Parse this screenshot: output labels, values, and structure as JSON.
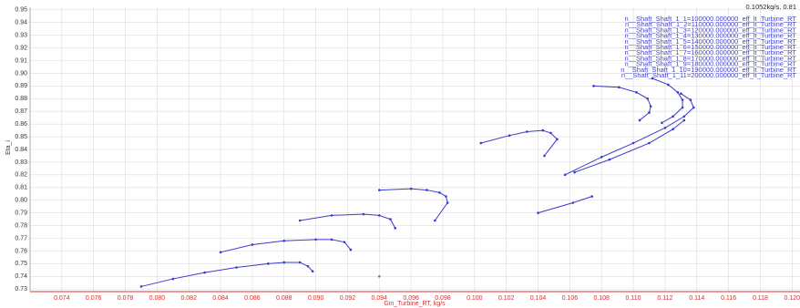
{
  "chart_data": {
    "type": "line",
    "xlabel": "Gin_Turbine_RT, kg/s",
    "ylabel": "Eta_i",
    "annotation": "0.1052kg/s, 0.81",
    "xlim": [
      0.072,
      0.1205
    ],
    "ylim": [
      0.728,
      0.952
    ],
    "grid": true,
    "legend": "upper right",
    "xticks": [
      0.074,
      0.076,
      0.078,
      {
        "value": 0.08,
        "label": "0.080"
      },
      0.082,
      0.084,
      0.086,
      0.088,
      {
        "value": 0.09,
        "label": "0.090"
      },
      0.092,
      0.094,
      0.096,
      0.098,
      {
        "value": 0.1,
        "label": "0.100"
      },
      0.102,
      0.104,
      0.106,
      0.108,
      {
        "value": 0.11,
        "label": "0.110"
      },
      0.112,
      0.114,
      0.116,
      0.118,
      {
        "value": 0.12,
        "label": "0.120"
      }
    ],
    "yticks": [
      0.73,
      0.74,
      0.75,
      0.76,
      0.77,
      0.78,
      0.79,
      {
        "value": 0.8,
        "label": "0.80"
      },
      0.81,
      0.82,
      0.83,
      0.84,
      0.85,
      0.86,
      0.87,
      0.88,
      0.89,
      {
        "value": 0.9,
        "label": "0.90"
      },
      0.91,
      0.92,
      0.93,
      0.94,
      0.95
    ],
    "series": [
      {
        "name": "n__Shaft_Shaft_1_1=100000.000000_eff_lt_Turbine_RT",
        "color": "#3a3acc",
        "x": [
          0.079,
          0.081,
          0.083,
          0.085,
          0.087,
          0.088,
          0.089,
          0.0895,
          0.0898
        ],
        "values": [
          0.732,
          0.738,
          0.743,
          0.747,
          0.75,
          0.751,
          0.751,
          0.748,
          0.744
        ]
      },
      {
        "name": "n__Shaft_Shaft_1_2=110000.000000_eff_lt_Turbine_RT",
        "color": "#3a3acc",
        "x": [
          0.084,
          0.086,
          0.088,
          0.09,
          0.091,
          0.0918,
          0.0922
        ],
        "values": [
          0.759,
          0.765,
          0.768,
          0.769,
          0.769,
          0.767,
          0.761
        ]
      },
      {
        "name": "n__Shaft_Shaft_1_3=120000.000000_eff_lt_Turbine_RT",
        "color": "#3a3acc",
        "x": [
          0.089,
          0.091,
          0.093,
          0.094,
          0.0947,
          0.095
        ],
        "values": [
          0.784,
          0.788,
          0.789,
          0.788,
          0.785,
          0.778
        ]
      },
      {
        "name": "n__Shaft_Shaft_1_4=130000.000000_eff_lt_Turbine_RT",
        "color": "#3a3acc",
        "x": [
          0.094,
          0.096,
          0.097,
          0.0978,
          0.0982,
          0.0983,
          0.0975
        ],
        "values": [
          0.808,
          0.809,
          0.808,
          0.806,
          0.803,
          0.798,
          0.784
        ]
      },
      {
        "name": "n__Shaft_Shaft_1_5=140000.000000_eff_lt_Turbine_RT",
        "color": "#3a3acc",
        "x": [
          0.1004,
          0.1022,
          0.1033,
          0.1043,
          0.1048,
          0.1052,
          0.1044
        ],
        "values": [
          0.845,
          0.851,
          0.854,
          0.855,
          0.853,
          0.848,
          0.835
        ]
      },
      {
        "name": "n__Shaft_Shaft_1_6=150000.000000_eff_lt_Turbine_RT",
        "color": "#3a3acc",
        "x": [
          0.1075,
          0.1091,
          0.1102,
          0.1109,
          0.1111,
          0.111,
          0.1104
        ],
        "values": [
          0.89,
          0.889,
          0.885,
          0.88,
          0.874,
          0.869,
          0.863
        ]
      },
      {
        "name": "n__Shaft_Shaft_1_7=160000.000000_eff_lt_Turbine_RT",
        "color": "#3a3acc",
        "x": [
          0.1112,
          0.1122,
          0.1128,
          0.1131,
          0.1131,
          0.1125,
          0.1118
        ],
        "values": [
          0.896,
          0.891,
          0.885,
          0.879,
          0.873,
          0.866,
          0.861
        ]
      },
      {
        "name": "n__Shaft_Shaft_1_8=170000.000000_eff_lt_Turbine_RT",
        "color": "#3a3acc",
        "x": [
          0.1057,
          0.108,
          0.11,
          0.112,
          0.1132,
          0.1138,
          0.1136,
          0.113
        ],
        "values": [
          0.82,
          0.834,
          0.845,
          0.857,
          0.866,
          0.873,
          0.879,
          0.884
        ]
      },
      {
        "name": "n__Shaft_Shaft_1_9=180000.000000_eff_lt_Turbine_RT",
        "color": "#3a3acc",
        "x": [
          0.1063,
          0.1085,
          0.111,
          0.1125,
          0.1132
        ],
        "values": [
          0.822,
          0.832,
          0.845,
          0.856,
          0.863
        ]
      },
      {
        "name": "n__Shaft_Shaft_1_10=190000.000000_eff_lt_Turbine_RT",
        "color": "#3a3acc",
        "x": [
          0.104,
          0.1062,
          0.1074
        ],
        "values": [
          0.79,
          0.798,
          0.803
        ]
      },
      {
        "name": "n__Shaft_Shaft_1_11=200000.000000_eff_lt_Turbine_RT",
        "color": "#777777",
        "x": [
          0.094
        ],
        "values": [
          0.74
        ]
      }
    ]
  }
}
